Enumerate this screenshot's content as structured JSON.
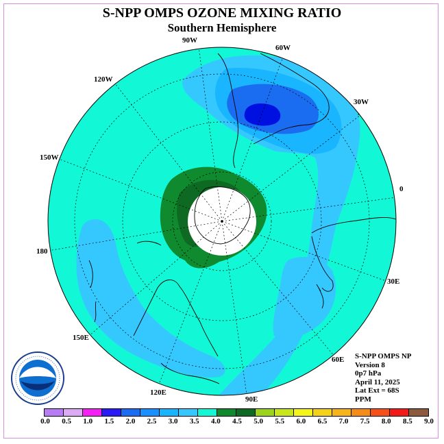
{
  "header": {
    "title": "S-NPP OMPS OZONE MIXING RATIO",
    "subtitle": "Southern Hemisphere"
  },
  "map": {
    "projection": "south-polar-stereographic",
    "longitude_labels": {
      "lon_90w": "90W",
      "lon_60w": "60W",
      "lon_30w": "30W",
      "lon_0": "0",
      "lon_30e": "30E",
      "lon_60e": "60E",
      "lon_90e": "90E",
      "lon_120e": "120E",
      "lon_150e": "150E",
      "lon_180": "180",
      "lon_150w": "150W",
      "lon_120w": "120W"
    },
    "colors": {
      "background_field": "#12f7d6",
      "ozone_2_5": "#1ab5ff",
      "ozone_3_0": "#35c8ff",
      "ozone_high_core": "#1a6cf0",
      "ozone_peak": "#0010e0",
      "ozone_4_0": "#0f8a2f",
      "ozone_4_5": "#0e6a22",
      "no_data": "#ffffff",
      "coastline": "#000000",
      "graticule": "#000000"
    }
  },
  "info": {
    "product": "S-NPP OMPS NP",
    "version": "Version 8",
    "level": "0p7 hPa",
    "date": "April 11, 2025",
    "lat_ext": "Lat Ext = 68S",
    "units": "PPM"
  },
  "colorbar": {
    "colors": [
      "#b97cf5",
      "#dca9f5",
      "#f51ef5",
      "#2a1af5",
      "#1a6cf0",
      "#1a8fff",
      "#1ab5ff",
      "#35c8ff",
      "#12f7d6",
      "#0f8a2f",
      "#0e6a22",
      "#9bd41a",
      "#c8e61a",
      "#f5f51a",
      "#f5d21a",
      "#f5b41a",
      "#f58c1a",
      "#f5501a",
      "#f51a1a",
      "#8c5a3c"
    ],
    "tick_labels": [
      "0.0",
      "0.5",
      "1.0",
      "1.5",
      "2.0",
      "2.5",
      "3.0",
      "3.5",
      "4.0",
      "4.5",
      "5.0",
      "5.5",
      "6.0",
      "6.5",
      "7.0",
      "7.5",
      "8.0",
      "8.5",
      "9.0"
    ]
  }
}
